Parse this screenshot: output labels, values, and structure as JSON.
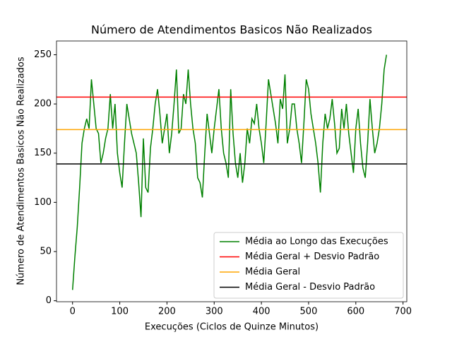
{
  "chart_data": {
    "type": "line",
    "title": "Número de Atendimentos Basicos Não Realizados",
    "x_label": "Execuções (Ciclos de Quinze Minutos)",
    "y_label": "Número de Atendimentos Basicos Não Realizados",
    "xlim": [
      -34,
      708
    ],
    "ylim": [
      -1,
      264
    ],
    "xticks": [
      0,
      100,
      200,
      300,
      400,
      500,
      600,
      700
    ],
    "yticks": [
      0,
      50,
      100,
      150,
      200,
      250
    ],
    "legend": "lower right",
    "series": [
      {
        "name": "Média ao Longo das Execuções",
        "color": "#008000",
        "x": [
          0,
          5,
          10,
          15,
          20,
          25,
          30,
          35,
          40,
          45,
          50,
          55,
          60,
          65,
          70,
          75,
          80,
          85,
          90,
          95,
          100,
          105,
          110,
          115,
          120,
          125,
          130,
          135,
          140,
          145,
          150,
          155,
          160,
          165,
          170,
          175,
          180,
          185,
          190,
          195,
          200,
          205,
          210,
          215,
          220,
          225,
          230,
          235,
          240,
          245,
          250,
          255,
          260,
          265,
          270,
          275,
          280,
          285,
          290,
          295,
          300,
          305,
          310,
          315,
          320,
          325,
          330,
          335,
          340,
          345,
          350,
          355,
          360,
          365,
          370,
          375,
          380,
          385,
          390,
          395,
          400,
          405,
          410,
          415,
          420,
          425,
          430,
          435,
          440,
          445,
          450,
          455,
          460,
          465,
          470,
          475,
          480,
          485,
          490,
          495,
          500,
          505,
          510,
          515,
          520,
          525,
          530,
          535,
          540,
          545,
          550,
          555,
          560,
          565,
          570,
          575,
          580,
          585,
          590,
          595,
          600,
          605,
          610,
          615,
          620,
          625,
          630,
          635,
          640,
          645,
          650,
          655,
          660,
          665
        ],
        "values": [
          11,
          45,
          75,
          115,
          160,
          175,
          185,
          175,
          225,
          200,
          175,
          170,
          140,
          150,
          165,
          175,
          210,
          175,
          200,
          150,
          130,
          115,
          160,
          200,
          185,
          170,
          160,
          150,
          120,
          85,
          165,
          115,
          110,
          155,
          175,
          200,
          215,
          190,
          160,
          175,
          190,
          150,
          170,
          200,
          235,
          170,
          175,
          210,
          200,
          235,
          200,
          175,
          160,
          125,
          120,
          105,
          150,
          190,
          170,
          150,
          175,
          195,
          215,
          175,
          150,
          140,
          125,
          215,
          170,
          140,
          125,
          150,
          120,
          140,
          175,
          160,
          185,
          180,
          200,
          175,
          160,
          140,
          180,
          225,
          210,
          195,
          180,
          160,
          205,
          195,
          230,
          160,
          175,
          200,
          200,
          175,
          160,
          140,
          180,
          225,
          215,
          190,
          175,
          160,
          140,
          110,
          160,
          190,
          175,
          185,
          205,
          180,
          150,
          155,
          195,
          175,
          200,
          170,
          150,
          130,
          175,
          195,
          160,
          135,
          125,
          160,
          205,
          175,
          150,
          160,
          175,
          200,
          235,
          250
        ]
      }
    ],
    "hlines": [
      {
        "name": "Média Geral + Desvio Padrão",
        "color": "#ff0000",
        "value": 207
      },
      {
        "name": "Média Geral",
        "color": "#ffa500",
        "value": 174
      },
      {
        "name": "Média Geral - Desvio Padrão",
        "color": "#000000",
        "value": 139
      }
    ]
  }
}
